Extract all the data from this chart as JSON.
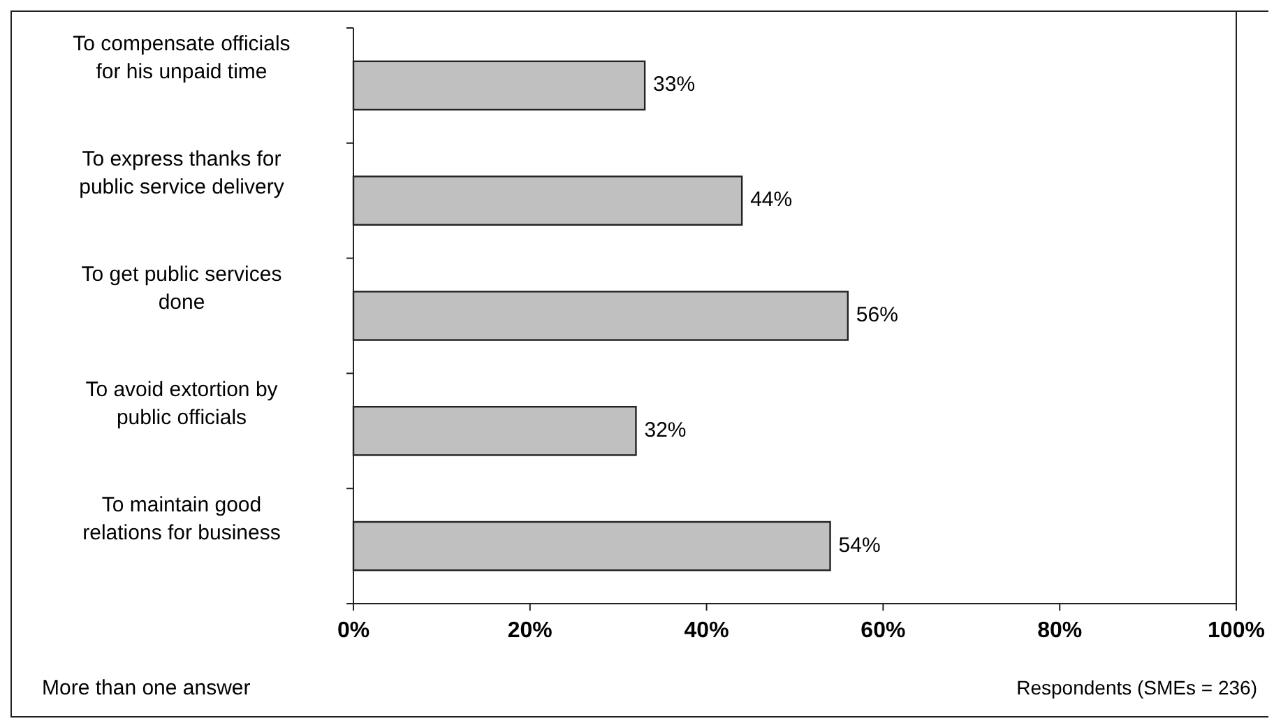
{
  "chart_data": {
    "type": "bar",
    "orientation": "horizontal",
    "categories": [
      "To compensate officials for his unpaid time",
      "To express thanks for public service delivery",
      "To get public services done",
      "To avoid extortion by public officials",
      "To maintain good relations for business"
    ],
    "values": [
      33,
      44,
      56,
      32,
      54
    ],
    "value_labels": [
      "33%",
      "44%",
      "56%",
      "32%",
      "54%"
    ],
    "color": "#c0c0c0",
    "xlim": [
      0,
      100
    ],
    "xticks": [
      {
        "value": 0,
        "label": "0%"
      },
      {
        "value": 20,
        "label": "20%"
      },
      {
        "value": 40,
        "label": "40%"
      },
      {
        "value": 60,
        "label": "60%"
      },
      {
        "value": 80,
        "label": "80%"
      },
      {
        "value": 100,
        "label": "100%"
      }
    ],
    "grid": false,
    "annotations": [
      "More than one answer",
      "Respondents (SMEs = 236)"
    ]
  }
}
